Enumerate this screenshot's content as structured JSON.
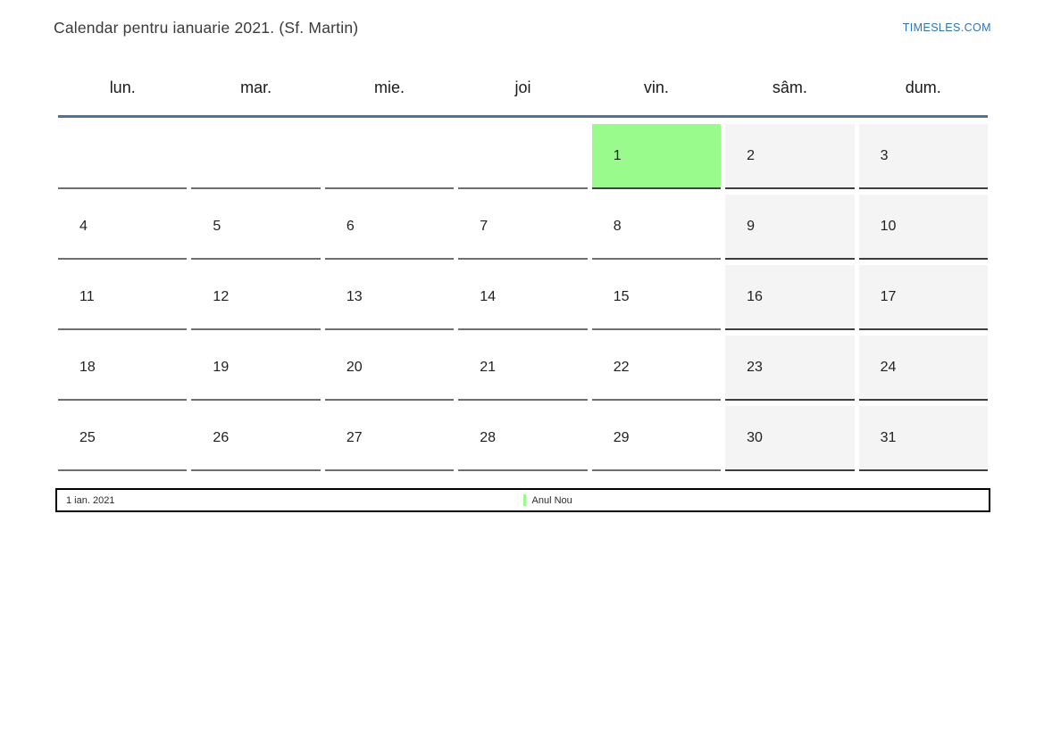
{
  "page": {
    "title": "Calendar pentru ianuarie 2021. (Sf. Martin)",
    "site_link": "TIMESLES.COM"
  },
  "calendar": {
    "weekday_headers": [
      "lun.",
      "mar.",
      "mie.",
      "joi",
      "vin.",
      "sâm.",
      "dum."
    ],
    "weeks": [
      [
        "",
        "",
        "",
        "",
        "1",
        "2",
        "3"
      ],
      [
        "4",
        "5",
        "6",
        "7",
        "8",
        "9",
        "10"
      ],
      [
        "11",
        "12",
        "13",
        "14",
        "15",
        "16",
        "17"
      ],
      [
        "18",
        "19",
        "20",
        "21",
        "22",
        "23",
        "24"
      ],
      [
        "25",
        "26",
        "27",
        "28",
        "29",
        "30",
        "31"
      ]
    ],
    "weekend_day_indexes": [
      5,
      6
    ],
    "holidays": [
      {
        "week": 0,
        "day": 4,
        "date": "1",
        "label": "Anul Nou"
      }
    ]
  },
  "legend": {
    "date_label": "1 ian. 2021",
    "event_label": "Anul Nou"
  },
  "colors": {
    "holiday_green": "#98fb8c",
    "weekend_bg": "#f4f4f4",
    "link_blue": "#2e74b5",
    "header_rule": "#4f7399",
    "weekday_border": "#6e6e6e",
    "weekend_border": "#3d3d3d",
    "legend_border": "#000000",
    "text_dark": "#1f1f1f"
  }
}
